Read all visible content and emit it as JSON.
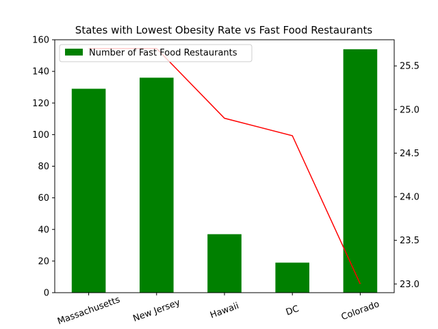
{
  "chart_data": {
    "type": "bar",
    "title": "States with Lowest Obesity Rate vs Fast Food Restaurants",
    "categories": [
      "Massachusetts",
      "New Jersey",
      "Hawaii",
      "DC",
      "Colorado"
    ],
    "series": [
      {
        "name": "Number of Fast Food Restaurants",
        "type": "bar",
        "axis": "left",
        "color": "#008000",
        "values": [
          129,
          136,
          37,
          19,
          154
        ]
      },
      {
        "type": "line",
        "axis": "right",
        "color": "#ff0000",
        "values": [
          25.7,
          25.7,
          24.9,
          24.7,
          23.0
        ]
      }
    ],
    "ylim_left": [
      0,
      160
    ],
    "ylim_right": [
      22.9,
      25.8
    ],
    "yticks_left": [
      0,
      20,
      40,
      60,
      80,
      100,
      120,
      140,
      160
    ],
    "yticks_right": [
      23.0,
      23.5,
      24.0,
      24.5,
      25.0,
      25.5
    ],
    "yticks_right_labels": [
      "23.0",
      "23.5",
      "24.0",
      "24.5",
      "25.0",
      "25.5"
    ],
    "xlabel": "",
    "ylabel": "",
    "grid": false,
    "legend": "upper-left"
  }
}
